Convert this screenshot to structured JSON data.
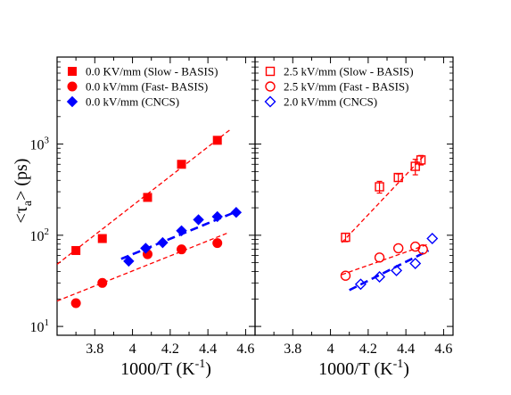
{
  "chart_data": [
    {
      "type": "scatter",
      "x_scale": "linear",
      "y_scale": "log",
      "xlim": [
        3.6,
        4.65
      ],
      "ylim": [
        8,
        9000
      ],
      "x_ticks": [
        "3.8",
        "4",
        "4.2",
        "4.4",
        "4.6"
      ],
      "y_ticks": [
        {
          "value": 10,
          "base": "10",
          "exp": "1"
        },
        {
          "value": 100,
          "base": "10",
          "exp": "2"
        },
        {
          "value": 1000,
          "base": "10",
          "exp": "3"
        }
      ],
      "xlabel": {
        "main": "1000/T  (K",
        "sup": "-1",
        "end": ")"
      },
      "ylabel": {
        "open": "<τ",
        "sub": "a",
        "close": ">  (ps)"
      },
      "legend_position": "top-left",
      "series": [
        {
          "name": "0.0 KV/mm (Slow - BASIS)",
          "marker": "square-filled",
          "color": "#ff0000",
          "x": [
            3.7,
            3.84,
            4.08,
            4.26,
            4.45
          ],
          "y": [
            68,
            92,
            260,
            600,
            1100
          ],
          "fit": {
            "x": [
              3.6,
              4.52
            ],
            "y": [
              48,
              1450
            ],
            "style": "dash-thin"
          }
        },
        {
          "name": "0.0 kV/mm (Fast- BASIS)",
          "marker": "circle-filled",
          "color": "#ff0000",
          "x": [
            3.7,
            3.84,
            4.08,
            4.26,
            4.45
          ],
          "y": [
            18,
            30,
            62,
            70,
            82
          ],
          "fit": {
            "x": [
              3.6,
              4.5
            ],
            "y": [
              19,
              105
            ],
            "style": "dash-thin"
          }
        },
        {
          "name": "0.0 kV/mm (CNCS)",
          "marker": "diamond-filled",
          "color": "#0000ff",
          "x": [
            3.98,
            4.07,
            4.16,
            4.26,
            4.35,
            4.45,
            4.55
          ],
          "y": [
            52,
            72,
            83,
            112,
            148,
            160,
            178
          ],
          "fit": {
            "x": [
              3.94,
              4.56
            ],
            "y": [
              55,
              185
            ],
            "style": "dash-thick"
          }
        }
      ]
    },
    {
      "type": "scatter",
      "x_scale": "linear",
      "y_scale": "log",
      "xlim": [
        3.6,
        4.65
      ],
      "ylim": [
        8,
        9000
      ],
      "x_ticks": [
        "3.8",
        "4",
        "4.2",
        "4.4",
        "4.6"
      ],
      "xlabel": {
        "main": "1000/T  (K",
        "sup": "-1",
        "end": ")"
      },
      "legend_position": "top-left",
      "series": [
        {
          "name": "2.5 kV/mm (Slow - BASIS)",
          "marker": "square-open",
          "color": "#ff0000",
          "x": [
            4.08,
            4.26,
            4.36,
            4.45,
            4.48
          ],
          "y": [
            95,
            340,
            430,
            570,
            670
          ],
          "err": [
            10,
            50,
            40,
            110,
            80
          ],
          "fit": {
            "x": [
              4.06,
              4.5
            ],
            "y": [
              83,
              760
            ],
            "style": "dash-thin"
          }
        },
        {
          "name": "2.5 kV/mm (Fast - BASIS)",
          "marker": "circle-open",
          "color": "#ff0000",
          "x": [
            4.08,
            4.26,
            4.36,
            4.45,
            4.49
          ],
          "y": [
            36,
            57,
            72,
            75,
            70
          ],
          "fit": {
            "x": [
              4.06,
              4.52
            ],
            "y": [
              37,
              80
            ],
            "style": "dash-thin"
          }
        },
        {
          "name": "2.0 kV/mm (CNCS)",
          "marker": "diamond-open",
          "color": "#0000ff",
          "x": [
            4.16,
            4.26,
            4.35,
            4.45,
            4.54
          ],
          "y": [
            29,
            35,
            41,
            49,
            92
          ],
          "fit": {
            "x": [
              4.1,
              4.52
            ],
            "y": [
              25,
              68
            ],
            "style": "dash-thick"
          }
        }
      ]
    }
  ]
}
